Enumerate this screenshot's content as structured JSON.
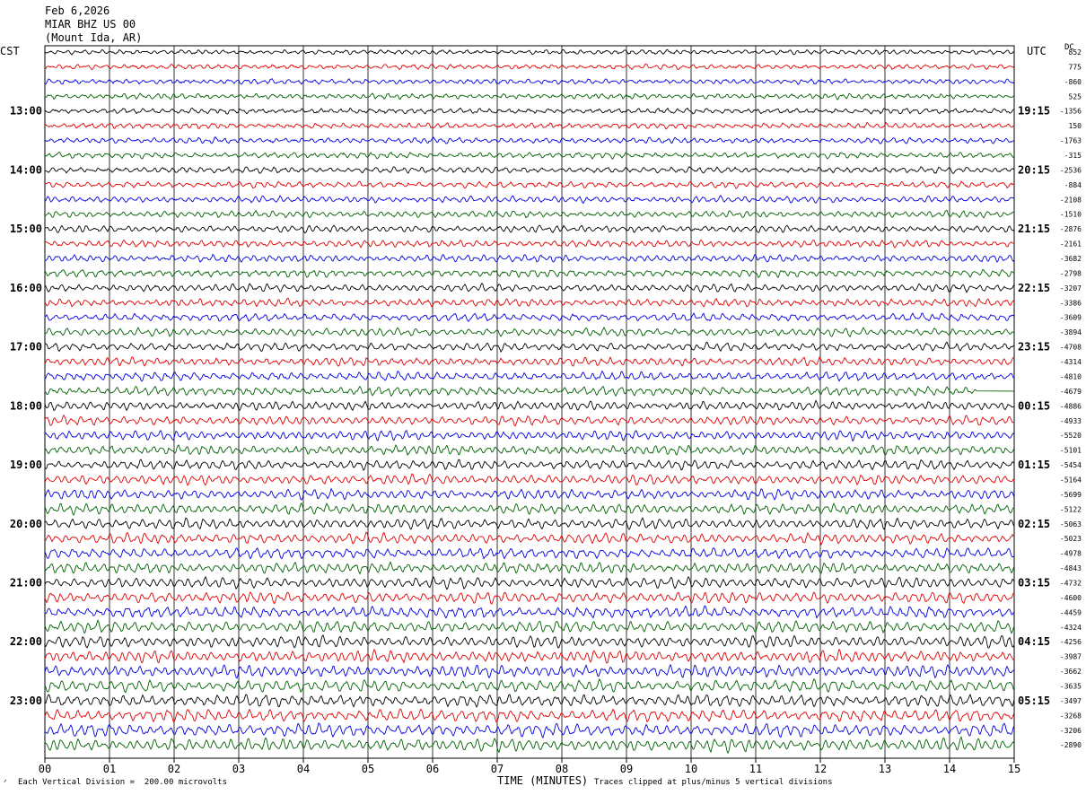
{
  "header": {
    "date": "Feb 6,2026",
    "station": "MIAR BHZ US 00",
    "location": "(Mount Ida, AR)"
  },
  "left_zone": "CST",
  "right_zone": "UTC",
  "dc_label": "DC",
  "footer": {
    "scale_note": "Each Vertical Division =  200.00 microvolts",
    "xlabel": "TIME (MINUTES)",
    "clip_note": "Traces clipped at plus/minus 5 vertical divisions"
  },
  "chart_data": {
    "type": "line",
    "title": "MIAR BHZ US 00 (Mount Ida, AR)",
    "xlabel": "TIME (MINUTES)",
    "xlim": [
      0,
      15
    ],
    "x_ticks": [
      "00",
      "01",
      "02",
      "03",
      "04",
      "05",
      "06",
      "07",
      "08",
      "09",
      "10",
      "11",
      "12",
      "13",
      "14",
      "15"
    ],
    "grid": true,
    "trace_colors": [
      "#000000",
      "#e00000",
      "#0000e0",
      "#006000"
    ],
    "trace_count": 48,
    "left_hour_labels": [
      "13:00",
      "14:00",
      "15:00",
      "16:00",
      "17:00",
      "18:00",
      "19:00",
      "20:00",
      "21:00",
      "22:00",
      "23:00"
    ],
    "right_hour_labels": [
      "19:15",
      "20:15",
      "21:15",
      "22:15",
      "23:15",
      "00:15",
      "01:15",
      "02:15",
      "03:15",
      "04:15",
      "05:15"
    ],
    "dc_offsets": [
      "852",
      "775",
      "-860",
      "525",
      "-1356",
      "150",
      "-1763",
      "-315",
      "-2536",
      "-884",
      "-2108",
      "-1510",
      "-2876",
      "-2161",
      "-3682",
      "-2798",
      "-3207",
      "-3386",
      "-3609",
      "-3894",
      "-4708",
      "-4314",
      "-4810",
      "-4679",
      "-4886",
      "-4933",
      "-5520",
      "-5101",
      "-5454",
      "-5164",
      "-5699",
      "-5122",
      "-5063",
      "-5023",
      "-4978",
      "-4843",
      "-4732",
      "-4600",
      "-4459",
      "-4324",
      "-4256",
      "-3987",
      "-3662",
      "-3635",
      "-3497",
      "-3268",
      "-3206",
      "-2890"
    ]
  }
}
